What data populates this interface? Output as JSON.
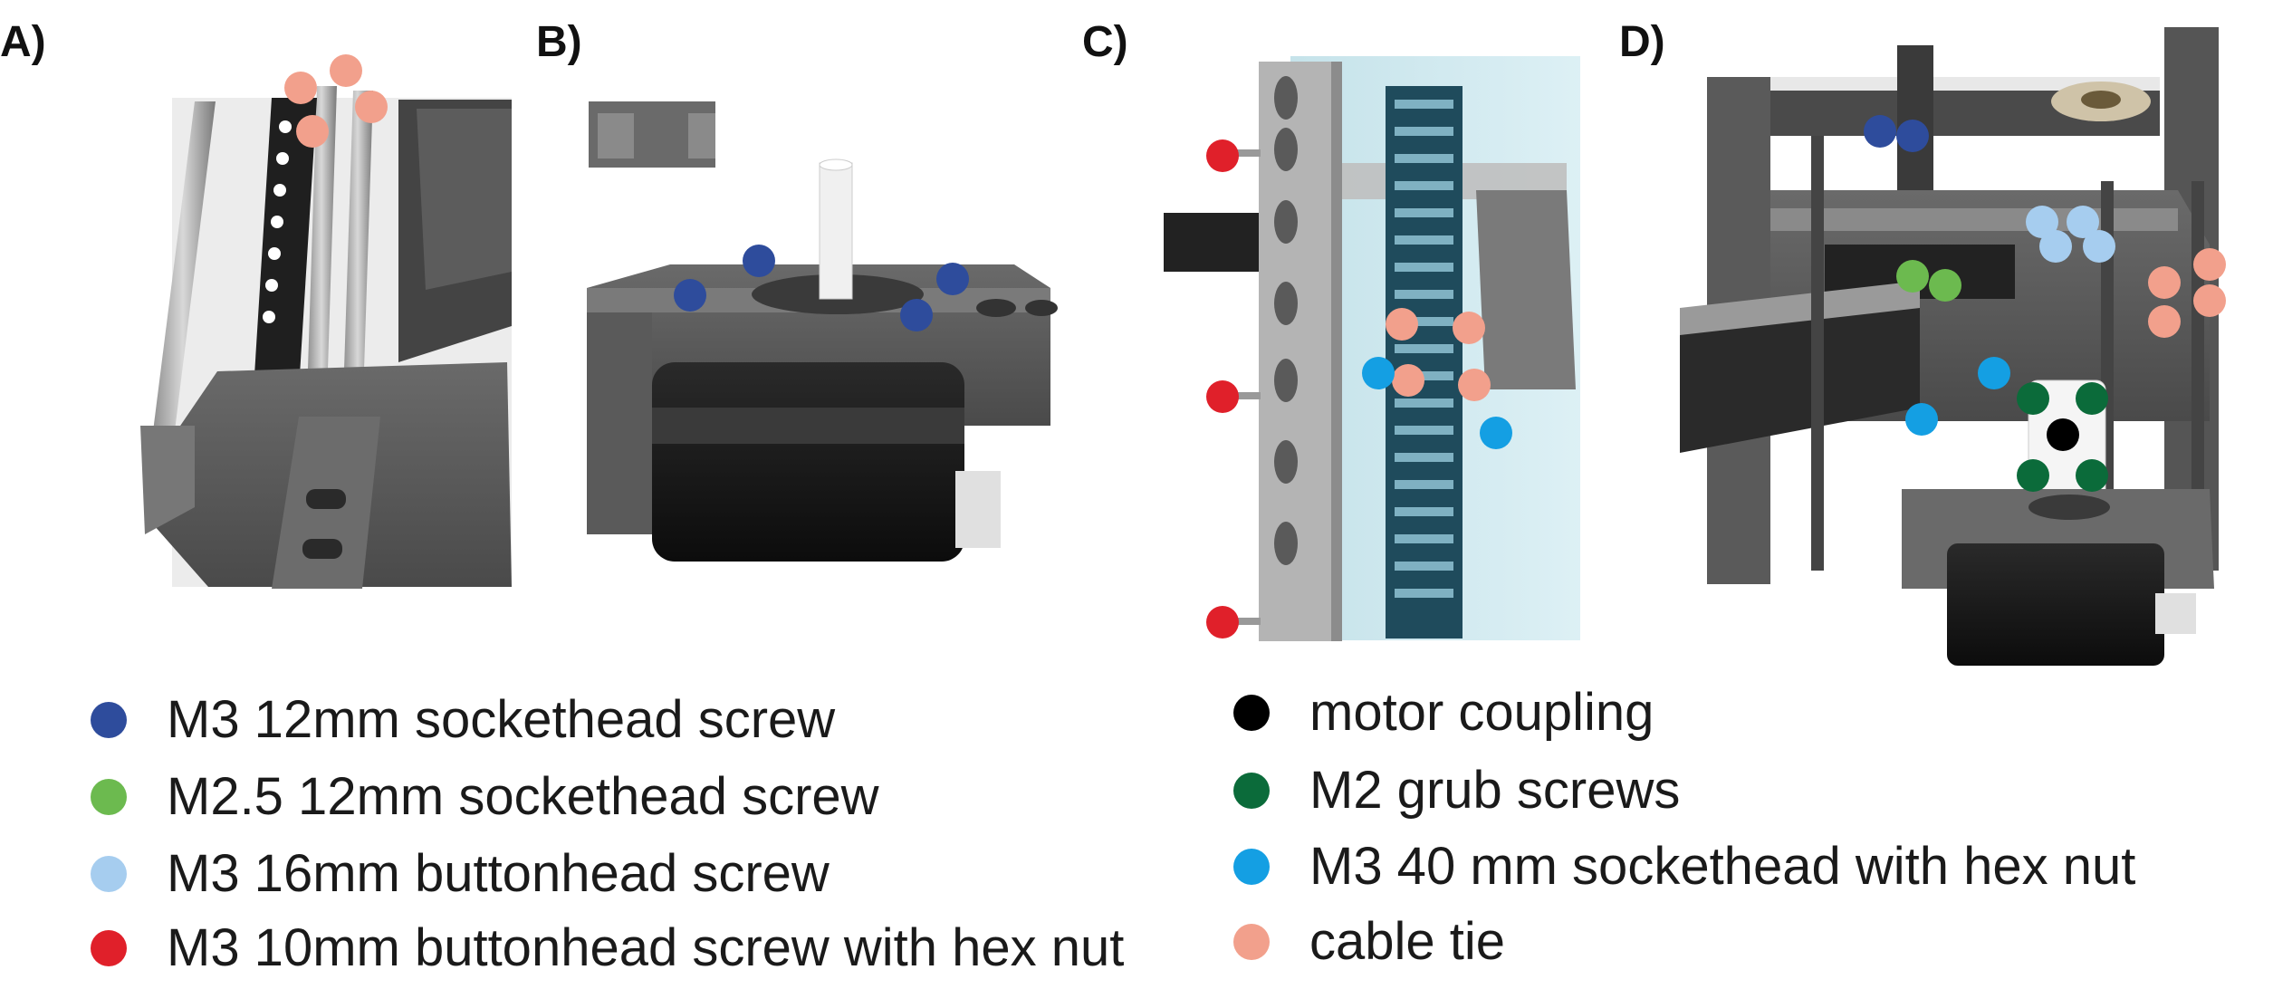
{
  "panels": [
    {
      "id": "A",
      "label": "A)"
    },
    {
      "id": "B",
      "label": "B)"
    },
    {
      "id": "C",
      "label": "C)"
    },
    {
      "id": "D",
      "label": "D)"
    }
  ],
  "legend": {
    "left": [
      {
        "key": "m3-12-sockethead",
        "label": "M3 12mm sockethead screw",
        "color": "#2e4c9c"
      },
      {
        "key": "m25-12-sockethead",
        "label": "M2.5 12mm sockethead screw",
        "color": "#6cba4f"
      },
      {
        "key": "m3-16-buttonhead",
        "label": "M3 16mm buttonhead screw",
        "color": "#a6cdef"
      },
      {
        "key": "m3-10-buttonhead-hexnut",
        "label": "M3 10mm buttonhead screw with hex nut",
        "color": "#e0202a"
      }
    ],
    "right": [
      {
        "key": "motor-coupling",
        "label": "motor coupling",
        "color": "#000000"
      },
      {
        "key": "m2-grub",
        "label": "M2 grub screws",
        "color": "#0b6b3a"
      },
      {
        "key": "m3-40-sockethead-hexnut",
        "label": "M3 40 mm sockethead with hex nut",
        "color": "#149fe3"
      },
      {
        "key": "cable-tie",
        "label": "cable tie",
        "color": "#f2a08c"
      }
    ]
  }
}
